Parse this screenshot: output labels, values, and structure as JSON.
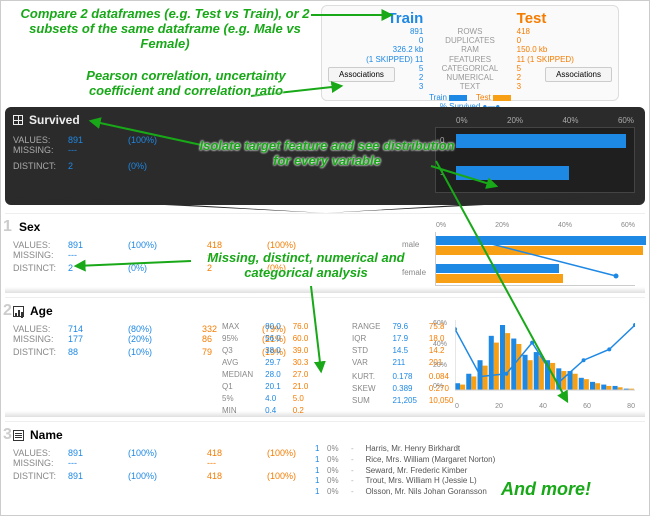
{
  "annotations": {
    "compare": "Compare 2 dataframes (e.g. Test vs Train),\nor 2 subsets of the same dataframe\n(e.g. Male vs Female)",
    "pearson": "Pearson correlation, uncertainty\ncoefficient and correlation ratio",
    "isolate": "Isolate target feature\nand see distribution for every variable",
    "missing": "Missing, distinct, numerical and\ncategorical analysis",
    "more": "And more!"
  },
  "header": {
    "left_title": "Train",
    "right_title": "Test",
    "stats": [
      {
        "l": "891",
        "m": "ROWS",
        "r": "418"
      },
      {
        "l": "0",
        "m": "DUPLICATES",
        "r": "0"
      },
      {
        "l": "326.2 kb",
        "m": "RAM",
        "r": "150.0 kb"
      },
      {
        "l": "(1 SKIPPED) 11",
        "m": "FEATURES",
        "r": "11 (1 SKIPPED)"
      },
      {
        "l": "5",
        "m": "CATEGORICAL",
        "r": "5"
      },
      {
        "l": "2",
        "m": "NUMERICAL",
        "r": "2"
      },
      {
        "l": "3",
        "m": "TEXT",
        "r": "3"
      }
    ],
    "assoc_label": "Associations",
    "legend": {
      "train": "Train",
      "test": "Test",
      "pct": "% Survived"
    }
  },
  "survived": {
    "title": "Survived",
    "values_lbl": "VALUES:",
    "missing_lbl": "MISSING:",
    "distinct_lbl": "DISTINCT:",
    "values": "891",
    "values_pct": "(100%)",
    "missing": "---",
    "missing_pct": "",
    "distinct": "2",
    "distinct_pct": "(0%)",
    "bars": {
      "ticks": [
        "0%",
        "20%",
        "40%",
        "60%"
      ],
      "rows": [
        {
          "label": "0",
          "pct": 60
        },
        {
          "label": "1",
          "pct": 40
        }
      ],
      "bar_color": "#1e88e5",
      "bg": "#1f1f1f",
      "grid": "#444",
      "text": "#aaa"
    }
  },
  "sex": {
    "title": "Sex",
    "values_lbl": "VALUES:",
    "missing_lbl": "MISSING:",
    "distinct_lbl": "DISTINCT:",
    "train": {
      "values": "891",
      "values_pct": "(100%)",
      "missing": "---",
      "distinct": "2",
      "distinct_pct": "(0%)"
    },
    "test": {
      "values": "418",
      "values_pct": "(100%)",
      "missing": "---",
      "distinct": "2",
      "distinct_pct": "(0%)"
    },
    "chart": {
      "ticks": [
        "0%",
        "20%",
        "40%",
        "60%"
      ],
      "rows": [
        {
          "label": "male",
          "train": 63,
          "test": 62
        },
        {
          "label": "female",
          "train": 37,
          "test": 38
        }
      ],
      "colors": {
        "train": "#1e88e5",
        "test": "#f7a016"
      },
      "line_color": "#1e88e5"
    }
  },
  "age": {
    "title": "Age",
    "values_lbl": "VALUES:",
    "missing_lbl": "MISSING:",
    "distinct_lbl": "DISTINCT:",
    "train": {
      "values": "714",
      "values_pct": "(80%)",
      "missing": "177",
      "missing_pct": "(20%)",
      "distinct": "88",
      "distinct_pct": "(10%)"
    },
    "test": {
      "values": "332",
      "values_pct": "(79%)",
      "missing": "86",
      "missing_pct": "(21%)",
      "distinct": "79",
      "distinct_pct": "(19%)"
    },
    "left_stats": [
      {
        "k": "MAX",
        "b": "80.0",
        "o": "76.0"
      },
      {
        "k": "95%",
        "b": "56.0",
        "o": "60.0"
      },
      {
        "k": "Q3",
        "b": "38.0",
        "o": "39.0"
      },
      {
        "k": "AVG",
        "b": "29.7",
        "o": "30.3"
      },
      {
        "k": "MEDIAN",
        "b": "28.0",
        "o": "27.0"
      },
      {
        "k": "Q1",
        "b": "20.1",
        "o": "21.0"
      },
      {
        "k": "5%",
        "b": "4.0",
        "o": "5.0"
      },
      {
        "k": "MIN",
        "b": "0.4",
        "o": "0.2"
      }
    ],
    "right_stats": [
      {
        "k": "RANGE",
        "b": "79.6",
        "o": "75.8"
      },
      {
        "k": "IQR",
        "b": "17.9",
        "o": "18.0"
      },
      {
        "k": "STD",
        "b": "14.5",
        "o": "14.2"
      },
      {
        "k": "VAR",
        "b": "211",
        "o": "201"
      },
      {
        "k": "",
        "b": "",
        "o": ""
      },
      {
        "k": "KURT.",
        "b": "0.178",
        "o": "0.084"
      },
      {
        "k": "SKEW",
        "b": "0.389",
        "o": "0.270"
      },
      {
        "k": "SUM",
        "b": "21,205",
        "o": "10,050"
      }
    ],
    "hist": {
      "xticks": [
        "0",
        "20",
        "40",
        "60",
        "80"
      ],
      "yticks": [
        "0%",
        "20%",
        "40%",
        "60%"
      ],
      "bins": [
        5,
        12,
        22,
        40,
        48,
        38,
        26,
        28,
        22,
        16,
        14,
        9,
        6,
        4,
        3,
        1
      ],
      "bins_test": [
        4,
        10,
        18,
        35,
        42,
        34,
        22,
        25,
        20,
        14,
        12,
        8,
        5,
        3,
        2,
        1
      ],
      "colors": {
        "train": "#1e88e5",
        "test": "#f7a016"
      },
      "line": [
        45,
        10,
        12,
        35,
        5,
        22,
        30,
        48
      ]
    }
  },
  "name": {
    "title": "Name",
    "train": {
      "values": "891",
      "values_pct": "(100%)",
      "missing": "---",
      "distinct": "891",
      "distinct_pct": "(100%)"
    },
    "test": {
      "values": "418",
      "values_pct": "(100%)",
      "missing": "---",
      "distinct": "418",
      "distinct_pct": "(100%)"
    },
    "values_lbl": "VALUES:",
    "missing_lbl": "MISSING:",
    "distinct_lbl": "DISTINCT:",
    "samples": [
      "Harris, Mr. Henry Birkhardt",
      "Rice, Mrs. William (Margaret Norton)",
      "Seward, Mr. Frederic Kimber",
      "Trout, Mrs. William H (Jessie L)",
      "Olsson, Mr. Nils Johan Goransson"
    ],
    "pct": "0%",
    "one": "1"
  },
  "palette": {
    "train": "#1e88e5",
    "test": "#f57c00",
    "green": "#18a818"
  }
}
